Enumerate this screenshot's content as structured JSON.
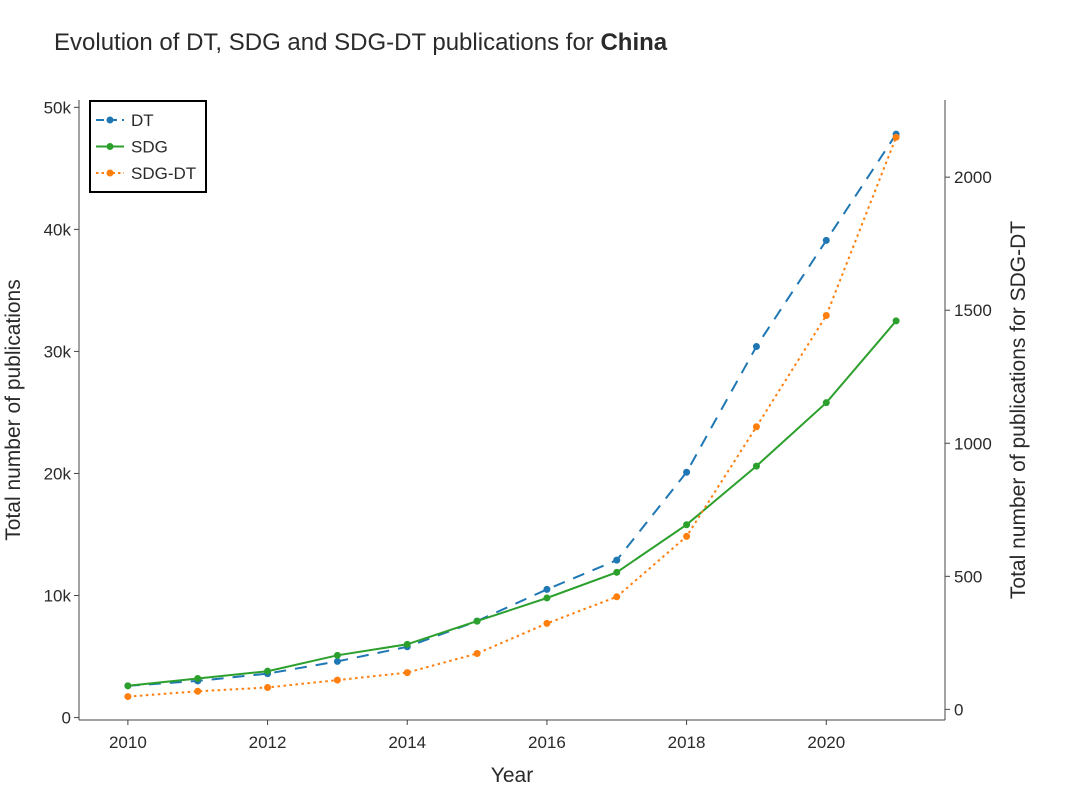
{
  "chart_data": {
    "type": "line",
    "title": "Evolution of DT, SDG and SDG-DT publications for ",
    "title_bold": "China",
    "xlabel": "Year",
    "ylabel": "Total number of publications",
    "y2label": "Total number of publications for SDG-DT",
    "xlim": [
      2009.3,
      2021.7
    ],
    "ylim": [
      -200,
      50600
    ],
    "y2lim": [
      -40,
      2290
    ],
    "x_ticks": [
      2010,
      2012,
      2014,
      2016,
      2018,
      2020
    ],
    "y_ticks": [
      {
        "value": 0,
        "label": "0"
      },
      {
        "value": 10000,
        "label": "10k"
      },
      {
        "value": 20000,
        "label": "20k"
      },
      {
        "value": 30000,
        "label": "30k"
      },
      {
        "value": 40000,
        "label": "40k"
      },
      {
        "value": 50000,
        "label": "50k"
      }
    ],
    "y2_ticks": [
      {
        "value": 0,
        "label": "0"
      },
      {
        "value": 500,
        "label": "500"
      },
      {
        "value": 1000,
        "label": "1000"
      },
      {
        "value": 1500,
        "label": "1500"
      },
      {
        "value": 2000,
        "label": "2000"
      }
    ],
    "grid": false,
    "legend_position": "top-left",
    "x": [
      2010,
      2011,
      2012,
      2013,
      2014,
      2015,
      2016,
      2017,
      2018,
      2019,
      2020,
      2021
    ],
    "series": [
      {
        "name": "DT",
        "axis": "left",
        "color": "#1f77b4",
        "dash": "dash",
        "values": [
          2600,
          3000,
          3600,
          4600,
          5800,
          7900,
          10500,
          12900,
          20100,
          30400,
          39100,
          47800
        ]
      },
      {
        "name": "SDG",
        "axis": "left",
        "color": "#2ca02c",
        "dash": "solid",
        "values": [
          2600,
          3200,
          3800,
          5100,
          6000,
          7900,
          9800,
          11900,
          15800,
          20600,
          25800,
          32500
        ]
      },
      {
        "name": "SDG-DT",
        "axis": "right",
        "color": "#ff7f0e",
        "dash": "dot",
        "values": [
          48,
          68,
          82,
          110,
          138,
          210,
          323,
          423,
          650,
          1062,
          1480,
          2150
        ]
      }
    ]
  }
}
